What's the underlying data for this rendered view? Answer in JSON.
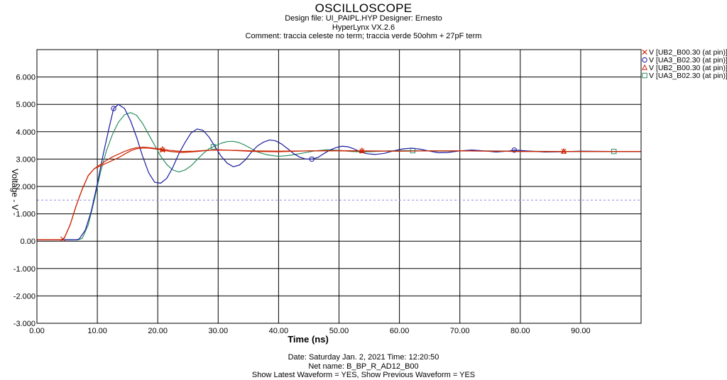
{
  "header": {
    "title": "OSCILLOSCOPE",
    "line1": "Design file: UI_PAIPL.HYP       Designer: Ernesto",
    "line2": "HyperLynx VX.2.6",
    "line3": "Comment: traccia celeste no term; traccia verde 50ohm + 27pF term"
  },
  "footer": {
    "line1": "Date: Saturday Jan. 2, 2021   Time: 12:20:50",
    "line2": "Net name: B_BP_R_AD12_B00",
    "line3": "Show Latest Waveform = YES,  Show Previous Waveform = YES"
  },
  "chart_data": {
    "type": "line",
    "xlabel": "Time  (ns)",
    "ylabel": "Voltage  - V -",
    "xlim": [
      0,
      100
    ],
    "ylim": [
      -3,
      7
    ],
    "x_ticks": [
      "0.00",
      "10.00",
      "20.00",
      "30.00",
      "40.00",
      "50.00",
      "60.00",
      "70.00",
      "80.00",
      "90.00"
    ],
    "y_ticks": [
      "-3.000",
      "-2.000",
      "-1.000",
      "0.00",
      "1.000",
      "2.000",
      "3.000",
      "4.000",
      "5.000",
      "6.000"
    ],
    "grid": true,
    "reference_line": {
      "y": 1.5,
      "style": "dashed",
      "color": "#8c8ce6"
    },
    "legend_position": "top-right",
    "series": [
      {
        "name": "V [UB2_B00.30 (at pin)]",
        "marker": "x",
        "color": "#cc2200",
        "points": [
          [
            0,
            0.05
          ],
          [
            4,
            0.05
          ],
          [
            4.5,
            0.1
          ],
          [
            5.5,
            0.6
          ],
          [
            6.5,
            1.3
          ],
          [
            7.5,
            1.9
          ],
          [
            8.5,
            2.4
          ],
          [
            9.5,
            2.65
          ],
          [
            10.5,
            2.75
          ],
          [
            11.5,
            2.85
          ],
          [
            12.5,
            2.95
          ],
          [
            13.5,
            3.05
          ],
          [
            14.5,
            3.18
          ],
          [
            15.5,
            3.3
          ],
          [
            16.5,
            3.38
          ],
          [
            17.5,
            3.4
          ],
          [
            18.5,
            3.4
          ],
          [
            20,
            3.36
          ],
          [
            22,
            3.28
          ],
          [
            24,
            3.24
          ],
          [
            26,
            3.27
          ],
          [
            28,
            3.31
          ],
          [
            30,
            3.34
          ],
          [
            33,
            3.31
          ],
          [
            36,
            3.28
          ],
          [
            40,
            3.27
          ],
          [
            45,
            3.3
          ],
          [
            50,
            3.3
          ],
          [
            55,
            3.29
          ],
          [
            60,
            3.29
          ],
          [
            65,
            3.3
          ],
          [
            70,
            3.3
          ],
          [
            75,
            3.29
          ],
          [
            80,
            3.28
          ],
          [
            85,
            3.28
          ],
          [
            90,
            3.28
          ],
          [
            95,
            3.28
          ],
          [
            100,
            3.28
          ]
        ],
        "markers_x": [
          4.3,
          20.8,
          53.8,
          87.2
        ]
      },
      {
        "name": "V [UA3_B02.30 (at pin)]",
        "marker": "o",
        "color": "#1a1aa0",
        "points": [
          [
            0,
            0.05
          ],
          [
            6.5,
            0.05
          ],
          [
            7,
            0.08
          ],
          [
            8,
            0.4
          ],
          [
            9,
            1.1
          ],
          [
            10,
            2.1
          ],
          [
            11,
            3.2
          ],
          [
            12,
            4.2
          ],
          [
            12.7,
            4.85
          ],
          [
            13.5,
            5.0
          ],
          [
            14.5,
            4.85
          ],
          [
            15.5,
            4.4
          ],
          [
            16.5,
            3.8
          ],
          [
            17.5,
            3.1
          ],
          [
            18.5,
            2.5
          ],
          [
            19.5,
            2.15
          ],
          [
            20.5,
            2.12
          ],
          [
            21.5,
            2.3
          ],
          [
            22.5,
            2.7
          ],
          [
            23.5,
            3.2
          ],
          [
            24.5,
            3.6
          ],
          [
            25.5,
            3.95
          ],
          [
            26.5,
            4.1
          ],
          [
            27.5,
            4.05
          ],
          [
            28.5,
            3.8
          ],
          [
            29.5,
            3.45
          ],
          [
            30.5,
            3.1
          ],
          [
            31.5,
            2.85
          ],
          [
            32.5,
            2.72
          ],
          [
            33.5,
            2.78
          ],
          [
            34.5,
            2.97
          ],
          [
            35.5,
            3.25
          ],
          [
            36.5,
            3.48
          ],
          [
            37.5,
            3.62
          ],
          [
            38.5,
            3.7
          ],
          [
            39.5,
            3.67
          ],
          [
            40.5,
            3.55
          ],
          [
            41.5,
            3.38
          ],
          [
            42.5,
            3.2
          ],
          [
            43.5,
            3.07
          ],
          [
            44.5,
            3.0
          ],
          [
            45.5,
            3.0
          ],
          [
            46.5,
            3.06
          ],
          [
            47.5,
            3.2
          ],
          [
            48.5,
            3.33
          ],
          [
            49.5,
            3.42
          ],
          [
            50.5,
            3.47
          ],
          [
            51.5,
            3.45
          ],
          [
            52.5,
            3.37
          ],
          [
            53.5,
            3.27
          ],
          [
            54.5,
            3.2
          ],
          [
            56,
            3.17
          ],
          [
            57.5,
            3.21
          ],
          [
            59,
            3.3
          ],
          [
            60.5,
            3.37
          ],
          [
            62,
            3.4
          ],
          [
            63.5,
            3.36
          ],
          [
            65,
            3.29
          ],
          [
            66.5,
            3.23
          ],
          [
            68,
            3.24
          ],
          [
            70,
            3.3
          ],
          [
            72,
            3.33
          ],
          [
            74,
            3.3
          ],
          [
            76,
            3.26
          ],
          [
            78,
            3.29
          ],
          [
            79,
            3.33
          ],
          [
            81,
            3.3
          ],
          [
            84,
            3.26
          ],
          [
            87,
            3.27
          ],
          [
            90,
            3.29
          ],
          [
            95,
            3.28
          ],
          [
            100,
            3.28
          ]
        ],
        "markers_x": [
          12.7,
          45.5,
          79
        ]
      },
      {
        "name": "V [UB2_B00.30 (at pin)]",
        "marker": "triangle",
        "color": "#cc2200",
        "points": [
          [
            0,
            0.05
          ],
          [
            4,
            0.05
          ],
          [
            4.5,
            0.1
          ],
          [
            5.5,
            0.6
          ],
          [
            6.5,
            1.3
          ],
          [
            7.5,
            1.9
          ],
          [
            8.5,
            2.4
          ],
          [
            9.5,
            2.65
          ],
          [
            10.5,
            2.8
          ],
          [
            11.5,
            2.95
          ],
          [
            12.5,
            3.08
          ],
          [
            13.5,
            3.18
          ],
          [
            14.5,
            3.28
          ],
          [
            15.5,
            3.36
          ],
          [
            16.5,
            3.42
          ],
          [
            17.5,
            3.44
          ],
          [
            18.5,
            3.42
          ],
          [
            20,
            3.38
          ],
          [
            22,
            3.32
          ],
          [
            24,
            3.28
          ],
          [
            26,
            3.29
          ],
          [
            28,
            3.32
          ],
          [
            30,
            3.33
          ],
          [
            33,
            3.32
          ],
          [
            36,
            3.3
          ],
          [
            40,
            3.29
          ],
          [
            45,
            3.3
          ],
          [
            50,
            3.31
          ],
          [
            55,
            3.3
          ],
          [
            60,
            3.29
          ],
          [
            65,
            3.3
          ],
          [
            70,
            3.3
          ],
          [
            75,
            3.29
          ],
          [
            80,
            3.28
          ],
          [
            85,
            3.28
          ],
          [
            90,
            3.28
          ],
          [
            95,
            3.28
          ],
          [
            100,
            3.28
          ]
        ],
        "markers_x": [
          20.8,
          53.8,
          87.2
        ]
      },
      {
        "name": "V [UA3_B02.30 (at pin)]",
        "marker": "square",
        "color": "#2a9060",
        "points": [
          [
            0,
            0.05
          ],
          [
            6.8,
            0.05
          ],
          [
            7.5,
            0.1
          ],
          [
            8.5,
            0.6
          ],
          [
            9.5,
            1.5
          ],
          [
            10.5,
            2.5
          ],
          [
            11.5,
            3.3
          ],
          [
            12.5,
            3.9
          ],
          [
            13.5,
            4.35
          ],
          [
            14.5,
            4.62
          ],
          [
            15.5,
            4.7
          ],
          [
            16.5,
            4.6
          ],
          [
            17.5,
            4.3
          ],
          [
            18.5,
            3.9
          ],
          [
            19.5,
            3.5
          ],
          [
            20.5,
            3.1
          ],
          [
            21.5,
            2.8
          ],
          [
            22.5,
            2.6
          ],
          [
            23.5,
            2.53
          ],
          [
            24.5,
            2.6
          ],
          [
            25.5,
            2.75
          ],
          [
            26.5,
            2.98
          ],
          [
            27.5,
            3.2
          ],
          [
            28.5,
            3.38
          ],
          [
            29.5,
            3.48
          ],
          [
            30.5,
            3.58
          ],
          [
            31.5,
            3.64
          ],
          [
            32.5,
            3.65
          ],
          [
            33.5,
            3.6
          ],
          [
            34.5,
            3.5
          ],
          [
            35.5,
            3.38
          ],
          [
            36.5,
            3.26
          ],
          [
            38,
            3.16
          ],
          [
            40,
            3.1
          ],
          [
            42,
            3.14
          ],
          [
            44,
            3.22
          ],
          [
            46,
            3.3
          ],
          [
            48,
            3.34
          ],
          [
            50,
            3.32
          ],
          [
            52,
            3.28
          ],
          [
            54,
            3.26
          ],
          [
            56,
            3.28
          ],
          [
            58,
            3.3
          ],
          [
            60,
            3.31
          ],
          [
            62,
            3.31
          ],
          [
            64,
            3.3
          ],
          [
            66,
            3.29
          ],
          [
            68,
            3.29
          ],
          [
            70,
            3.3
          ],
          [
            75,
            3.3
          ],
          [
            80,
            3.29
          ],
          [
            85,
            3.28
          ],
          [
            90,
            3.28
          ],
          [
            95,
            3.28
          ],
          [
            100,
            3.28
          ]
        ],
        "markers_x": [
          29.2,
          62.2,
          95.5
        ]
      }
    ]
  }
}
